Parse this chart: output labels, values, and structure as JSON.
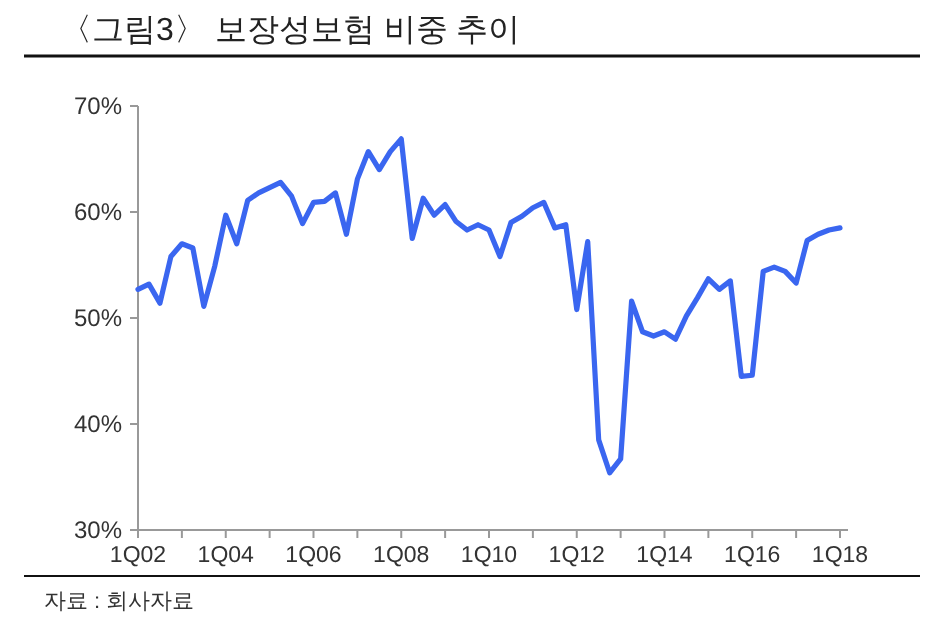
{
  "chart_data": {
    "type": "line",
    "title": "〈그림3〉 보장성보험 비중 추이",
    "categories": [
      "1Q02",
      null,
      null,
      null,
      null,
      null,
      null,
      null,
      "1Q04",
      null,
      null,
      null,
      null,
      null,
      null,
      null,
      "1Q06",
      null,
      null,
      null,
      null,
      null,
      null,
      null,
      "1Q08",
      null,
      null,
      null,
      null,
      null,
      null,
      null,
      "1Q10",
      null,
      null,
      null,
      null,
      null,
      null,
      null,
      "1Q12",
      null,
      null,
      null,
      null,
      null,
      null,
      null,
      "1Q14",
      null,
      null,
      null,
      null,
      null,
      null,
      null,
      "1Q16",
      null,
      null,
      null,
      null,
      null,
      null,
      null,
      "1Q18"
    ],
    "series": [
      {
        "color": "#3a66f0",
        "values": [
          52.7,
          53.2,
          51.4,
          55.8,
          57.0,
          56.6,
          51.1,
          54.9,
          59.7,
          57.0,
          61.1,
          61.8,
          62.3,
          62.8,
          61.5,
          58.9,
          60.9,
          61.0,
          61.8,
          57.9,
          63.1,
          65.7,
          64.0,
          65.7,
          66.9,
          57.5,
          61.3,
          59.7,
          60.7,
          59.1,
          58.3,
          58.8,
          58.3,
          55.8,
          59.0,
          59.6,
          60.4,
          60.9,
          58.5,
          58.8,
          50.8,
          57.2,
          38.5,
          35.4,
          36.7,
          51.6,
          48.7,
          48.3,
          48.7,
          48.0,
          50.2,
          51.9,
          53.7,
          52.7,
          53.5,
          44.5,
          44.6,
          54.4,
          54.8,
          54.4,
          53.3,
          57.3,
          57.9,
          58.3,
          58.5
        ]
      }
    ],
    "ylim": [
      30,
      70
    ],
    "yticks": [
      {
        "value": 30,
        "label": "30%"
      },
      {
        "value": 40,
        "label": "40%"
      },
      {
        "value": 50,
        "label": "50%"
      },
      {
        "value": 60,
        "label": "60%"
      },
      {
        "value": 70,
        "label": "70%"
      }
    ],
    "grid": false,
    "marker": "none",
    "line_style": "solid",
    "annotations": [
      "자료 : 회사자료"
    ]
  }
}
